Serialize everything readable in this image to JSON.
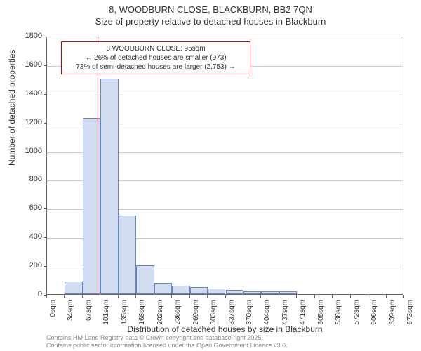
{
  "titles": {
    "line1": "8, WOODBURN CLOSE, BLACKBURN, BB2 7QN",
    "line2": "Size of property relative to detached houses in Blackburn"
  },
  "chart": {
    "type": "histogram",
    "ylabel": "Number of detached properties",
    "xlabel": "Distribution of detached houses by size in Blackburn",
    "ylim": [
      0,
      1800
    ],
    "ytick_step": 200,
    "yticks": [
      0,
      200,
      400,
      600,
      800,
      1000,
      1200,
      1400,
      1600,
      1800
    ],
    "xticks": [
      "0sqm",
      "34sqm",
      "67sqm",
      "101sqm",
      "135sqm",
      "168sqm",
      "202sqm",
      "236sqm",
      "269sqm",
      "303sqm",
      "337sqm",
      "370sqm",
      "404sqm",
      "437sqm",
      "471sqm",
      "505sqm",
      "538sqm",
      "572sqm",
      "606sqm",
      "639sqm",
      "673sqm"
    ],
    "bar_values": [
      0,
      90,
      1230,
      1500,
      550,
      200,
      80,
      60,
      50,
      40,
      30,
      20,
      20,
      20,
      0,
      0,
      0,
      0,
      0,
      0
    ],
    "bar_fill": "#d3ddf2",
    "bar_border": "#6a83c4",
    "grid_color": "#cccccc",
    "axis_color": "#666666",
    "background_color": "#ffffff",
    "marker_value_sqm": 95,
    "marker_color": "#cc0000",
    "annotation": {
      "line1": "8 WOODBURN CLOSE: 95sqm",
      "line2": "← 26% of detached houses are smaller (973)",
      "line3": "73% of semi-detached houses are larger (2,753) →"
    },
    "label_fontsize": 12,
    "tick_fontsize": 11,
    "title_fontsize": 13
  },
  "footer": {
    "line1": "Contains HM Land Registry data © Crown copyright and database right 2025.",
    "line2": "Contains public sector information licensed under the Open Government Licence v3.0."
  }
}
